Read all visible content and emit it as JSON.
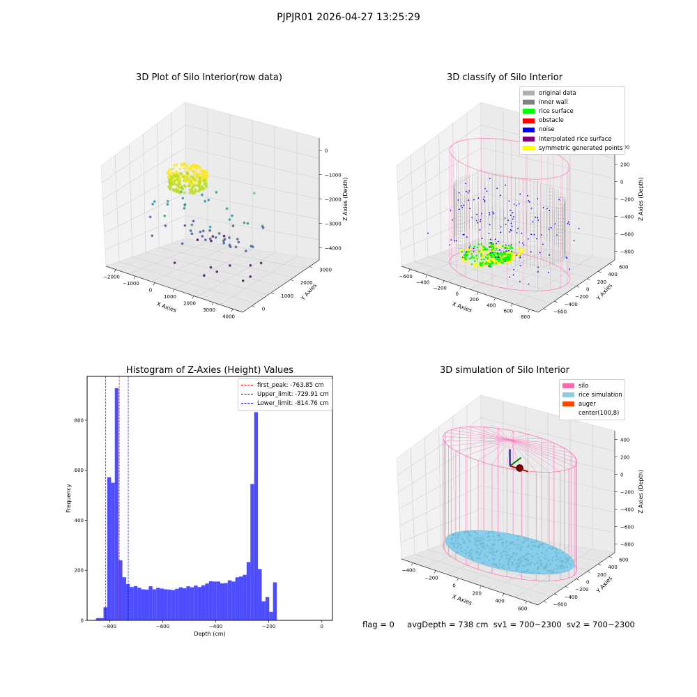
{
  "suptitle": "PJPJR01 2026-04-27 13:25:29",
  "status": {
    "flag": "flag = 0",
    "avg_depth": "avgDepth = 738 cm",
    "sv1": "sv1 = 700~2300",
    "sv2": "sv2 = 700~2300"
  },
  "colors": {
    "hist_bar": "#4d4dff",
    "peak_line": "#ff0000",
    "limit_line": "#0000ff",
    "silo_wire": "#ff69b4",
    "rice_sim": "#87ceeb",
    "auger": "#ff4500",
    "original": "#b0b0b0",
    "inner_wall": "#808080",
    "rice_surface": "#00ff00",
    "obstacle": "#ff0000",
    "noise": "#0000ff",
    "interpolated": "#800080",
    "symmetric": "#ffff00",
    "viridis_low": "#440154",
    "viridis_mid": "#21918c",
    "viridis_high": "#fde725"
  },
  "chart_data": [
    {
      "id": "raw",
      "type": "scatter",
      "title": "3D Plot of Silo Interior(row data)",
      "xlabel": "X Axies",
      "ylabel": "Y Axies",
      "zlabel": "Z Axies (Depth)",
      "xticks": [
        "−2000",
        "−1000",
        "0",
        "1000",
        "2000",
        "3000",
        "4000"
      ],
      "yticks": [
        "0",
        "1000",
        "2000",
        "3000"
      ],
      "zticks": [
        "0",
        "−1000",
        "−2000",
        "−3000",
        "−4000"
      ],
      "xlim": [
        -2500,
        4500
      ],
      "ylim": [
        -500,
        3800
      ],
      "zlim": [
        -4500,
        0
      ],
      "colormap": "viridis"
    },
    {
      "id": "classify",
      "type": "scatter",
      "title": "3D classify of Silo Interior",
      "xlabel": "X Axies",
      "ylabel": "Y Axies",
      "zlabel": "Z Axies (Depth)",
      "xticks": [
        "−600",
        "−400",
        "−200",
        "0",
        "200",
        "400",
        "600",
        "800"
      ],
      "yticks": [
        "−600",
        "−400",
        "−200",
        "0",
        "200",
        "400",
        "600"
      ],
      "zticks": [
        "400",
        "200",
        "0",
        "−200",
        "−400",
        "−600",
        "−800"
      ],
      "xlim": [
        -650,
        850
      ],
      "ylim": [
        -700,
        700
      ],
      "zlim": [
        -900,
        500
      ],
      "legend": [
        {
          "label": "original data",
          "color_key": "original"
        },
        {
          "label": "inner wall",
          "color_key": "inner_wall"
        },
        {
          "label": "rice surface",
          "color_key": "rice_surface"
        },
        {
          "label": "obstacle",
          "color_key": "obstacle"
        },
        {
          "label": "noise",
          "color_key": "noise"
        },
        {
          "label": "interpolated rice surface",
          "color_key": "interpolated"
        },
        {
          "label": "symmetric generated points",
          "color_key": "symmetric"
        }
      ]
    },
    {
      "id": "hist",
      "type": "bar",
      "title": "Histogram of Z-Axies (Height) Values",
      "xlabel": "Depth (cm)",
      "ylabel": "Frequency",
      "xlim": [
        -885,
        40
      ],
      "ylim": [
        0,
        975
      ],
      "xticks": [
        -800,
        -600,
        -400,
        -200,
        0
      ],
      "yticks": [
        0,
        200,
        400,
        600,
        800
      ],
      "bin_start": -851.6,
      "bin_width": 14.2,
      "values": [
        9,
        9,
        52,
        572,
        550,
        928,
        240,
        172,
        145,
        133,
        137,
        130,
        124,
        123,
        136,
        124,
        130,
        127,
        124,
        123,
        121,
        126,
        132,
        128,
        136,
        132,
        139,
        133,
        140,
        147,
        156,
        155,
        155,
        148,
        149,
        160,
        155,
        172,
        175,
        182,
        233,
        545,
        832,
        205,
        76,
        93,
        34,
        152
      ],
      "vlines": [
        {
          "label": "first_peak: -763.85 cm",
          "x": -763.85,
          "color_key": "peak_line"
        },
        {
          "label": "Upper_limit: -729.91 cm",
          "x": -729.91,
          "color_key": "limit_line"
        },
        {
          "label": "Lower_limit: -814.76 cm",
          "x": -814.76,
          "color_key": "limit_line"
        }
      ]
    },
    {
      "id": "sim",
      "type": "scatter",
      "title": "3D simulation of Silo Interior",
      "xlabel": "X Axies",
      "ylabel": "Y Axies",
      "zlabel": "Z Axies (Depth)",
      "xticks": [
        "−400",
        "−200",
        "0",
        "200",
        "400",
        "600"
      ],
      "yticks": [
        "−600",
        "−400",
        "−200",
        "0",
        "200",
        "400",
        "600"
      ],
      "zticks": [
        "400",
        "200",
        "0",
        "−200",
        "−400",
        "−600",
        "−800"
      ],
      "xlim": [
        -550,
        750
      ],
      "ylim": [
        -700,
        700
      ],
      "zlim": [
        -900,
        500
      ],
      "legend": [
        {
          "label": "silo",
          "color_key": "silo_wire"
        },
        {
          "label": "rice simulation",
          "color_key": "rice_sim"
        },
        {
          "label": "auger",
          "color_key": "auger"
        },
        {
          "label": "center(100,8)",
          "color_key": ""
        }
      ]
    }
  ]
}
